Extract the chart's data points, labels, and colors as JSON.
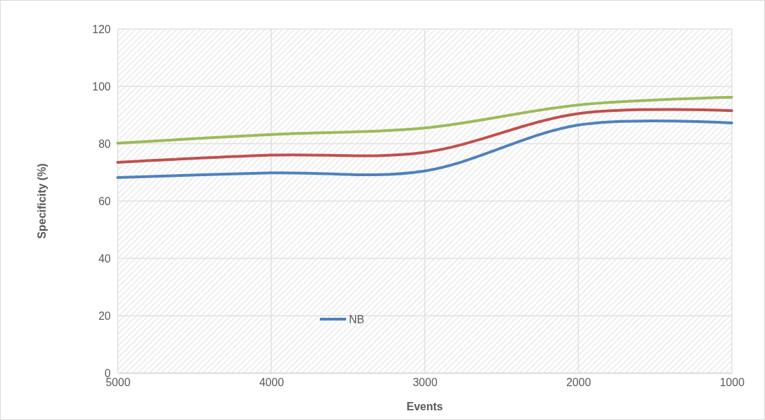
{
  "chart_data": {
    "type": "line",
    "xlabel": "Events",
    "ylabel": "Specificity (%)",
    "x": [
      5000,
      4000,
      3000,
      2000,
      1000
    ],
    "xlim": [
      5000,
      1000
    ],
    "xticks": [
      5000,
      4000,
      3000,
      2000,
      1000
    ],
    "ylim": [
      0,
      120
    ],
    "yticks": [
      0,
      20,
      40,
      60,
      80,
      100,
      120
    ],
    "grid": true,
    "legend": "bottom",
    "marker": "none",
    "line_style": "solid",
    "series": [
      {
        "name": "NB",
        "color": "#4f81bd",
        "values": [
          68.2,
          69.8,
          70.5,
          86.5,
          87.2
        ]
      },
      {
        "color": "#c0504d",
        "values": [
          73.5,
          76,
          77,
          90.5,
          91.5
        ]
      },
      {
        "color": "#9bbb59",
        "values": [
          80.2,
          83.2,
          85.5,
          93.5,
          96.2
        ]
      }
    ]
  }
}
